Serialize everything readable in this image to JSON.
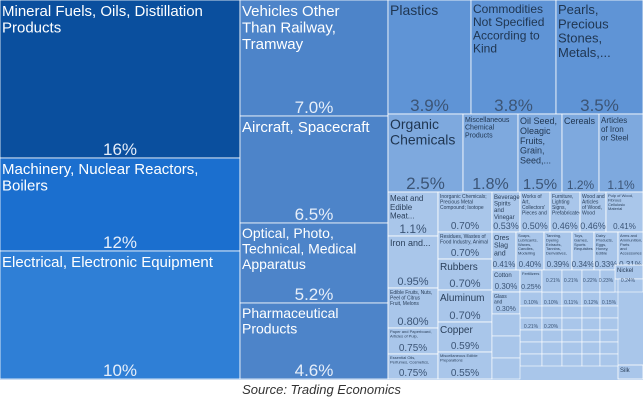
{
  "source": "Source: Trading Economics",
  "chart_data": {
    "type": "treemap",
    "tiles": [
      {
        "label": "Mineral Fuels, Oils, Distillation Products",
        "value_label": "16%",
        "value": 16
      },
      {
        "label": "Machinery, Nuclear Reactors, Boilers",
        "value_label": "12%",
        "value": 12
      },
      {
        "label": "Electrical, Electronic Equipment",
        "value_label": "10%",
        "value": 10
      },
      {
        "label": "Vehicles Other Than Railway, Tramway",
        "value_label": "7.0%",
        "value": 7.0
      },
      {
        "label": "Aircraft, Spacecraft",
        "value_label": "6.5%",
        "value": 6.5
      },
      {
        "label": "Optical, Photo, Technical, Medical Apparatus",
        "value_label": "5.2%",
        "value": 5.2
      },
      {
        "label": "Pharmaceutical Products",
        "value_label": "4.6%",
        "value": 4.6
      },
      {
        "label": "Plastics",
        "value_label": "3.9%",
        "value": 3.9
      },
      {
        "label": "Commodities Not Specified According to Kind",
        "value_label": "3.8%",
        "value": 3.8
      },
      {
        "label": "Pearls, Precious Stones, Metals,...",
        "value_label": "3.5%",
        "value": 3.5
      },
      {
        "label": "Organic Chemicals",
        "value_label": "2.5%",
        "value": 2.5
      },
      {
        "label": "Miscellaneous Chemical Products",
        "value_label": "1.8%",
        "value": 1.8
      },
      {
        "label": "Oil Seed, Oleagic Fruits, Grain, Seed,...",
        "value_label": "1.5%",
        "value": 1.5
      },
      {
        "label": "Cereals",
        "value_label": "1.2%",
        "value": 1.2
      },
      {
        "label": "Articles of Iron or Steel",
        "value_label": "1.1%",
        "value": 1.1
      },
      {
        "label": "Meat and Edible Meat...",
        "value_label": "1.1%",
        "value": 1.1
      },
      {
        "label": "Inorganic Chemicals; Precious Metal Compound; Isotope",
        "value_label": "0.70%",
        "value": 0.7
      },
      {
        "label": "Beverages, Spirits and Vinegar",
        "value_label": "0.53%",
        "value": 0.53
      },
      {
        "label": "Works of Art, Collectors' Pieces and Antiques",
        "value_label": "0.50%",
        "value": 0.5
      },
      {
        "label": "Furniture, Lighting Signs, Prefabricated Buildings",
        "value_label": "0.46%",
        "value": 0.46
      },
      {
        "label": "Wood and Articles of Wood, Wood Charcoal",
        "value_label": "0.46%",
        "value": 0.46
      },
      {
        "label": "Pulp of Wood, Fibrous Cellulosic Material",
        "value_label": "0.41%",
        "value": 0.41
      },
      {
        "label": "Iron and...",
        "value_label": "0.95%",
        "value": 0.95
      },
      {
        "label": "Residues, Wastes of Food Industry, Animal Fodder",
        "value_label": "0.70%",
        "value": 0.7
      },
      {
        "label": "Ores Slag and Ash",
        "value_label": "0.41%",
        "value": 0.41
      },
      {
        "label": "Soaps, Lubricants, Waxes, Candles, Modelling",
        "value_label": "0.40%",
        "value": 0.4
      },
      {
        "label": "Tanning, Dyeing Extracts, Tannins, Derivatives, Pigments",
        "value_label": "0.39%",
        "value": 0.39
      },
      {
        "label": "Toys, Games, Sports Requisites",
        "value_label": "0.34%",
        "value": 0.34
      },
      {
        "label": "Dairy Products, Eggs, Honey, Edible Products",
        "value_label": "0.33%",
        "value": 0.33
      },
      {
        "label": "Arms and Ammunition, Parts and Accessories",
        "value_label": "0.31%",
        "value": 0.31
      },
      {
        "label": "Edible Fruits, Nuts, Peel of Citrus Fruit, Melons",
        "value_label": "0.80%",
        "value": 0.8
      },
      {
        "label": "Rubbers",
        "value_label": "0.70%",
        "value": 0.7
      },
      {
        "label": "Cotton",
        "value_label": "0.30%",
        "value": 0.3
      },
      {
        "label": "Fertilizers",
        "value_label": "0.25%",
        "value": 0.25
      },
      {
        "label": "Paper and Paperboard, Articles of Pulp, Paper and Board",
        "value_label": "0.75%",
        "value": 0.75
      },
      {
        "label": "Aluminum",
        "value_label": "0.70%",
        "value": 0.7
      },
      {
        "label": "Glass and Glassware",
        "value_label": "0.30%",
        "value": 0.3
      },
      {
        "label": "Nickel",
        "value_label": "",
        "value": 0.2
      },
      {
        "label": "Essential Oils, Perfumes, Cosmetics, Toileteries",
        "value_label": "0.75%",
        "value": 0.75
      },
      {
        "label": "Copper",
        "value_label": "0.59%",
        "value": 0.59
      },
      {
        "label": "Miscellaneous Edible Preparations",
        "value_label": "0.55%",
        "value": 0.55
      },
      {
        "label": "Silk",
        "value_label": "",
        "value": 0.05
      }
    ],
    "small_value_labels": [
      "0.21%",
      "0.21%",
      "0.22%",
      "0.23%",
      "0.24%",
      "0.10%",
      "0.10%",
      "0.11%",
      "0.12%",
      "0.15%",
      "0.21%",
      "0.20%"
    ],
    "colors": {
      "darkest": "#0a4f9e",
      "dark": "#1b6fcf",
      "mid": "#2f7fd6",
      "medium": "#4d84c9",
      "light": "#5f94d6",
      "lighter": "#7ea9de",
      "lightest": "#a9c6ea",
      "border": "#ffffff"
    }
  }
}
